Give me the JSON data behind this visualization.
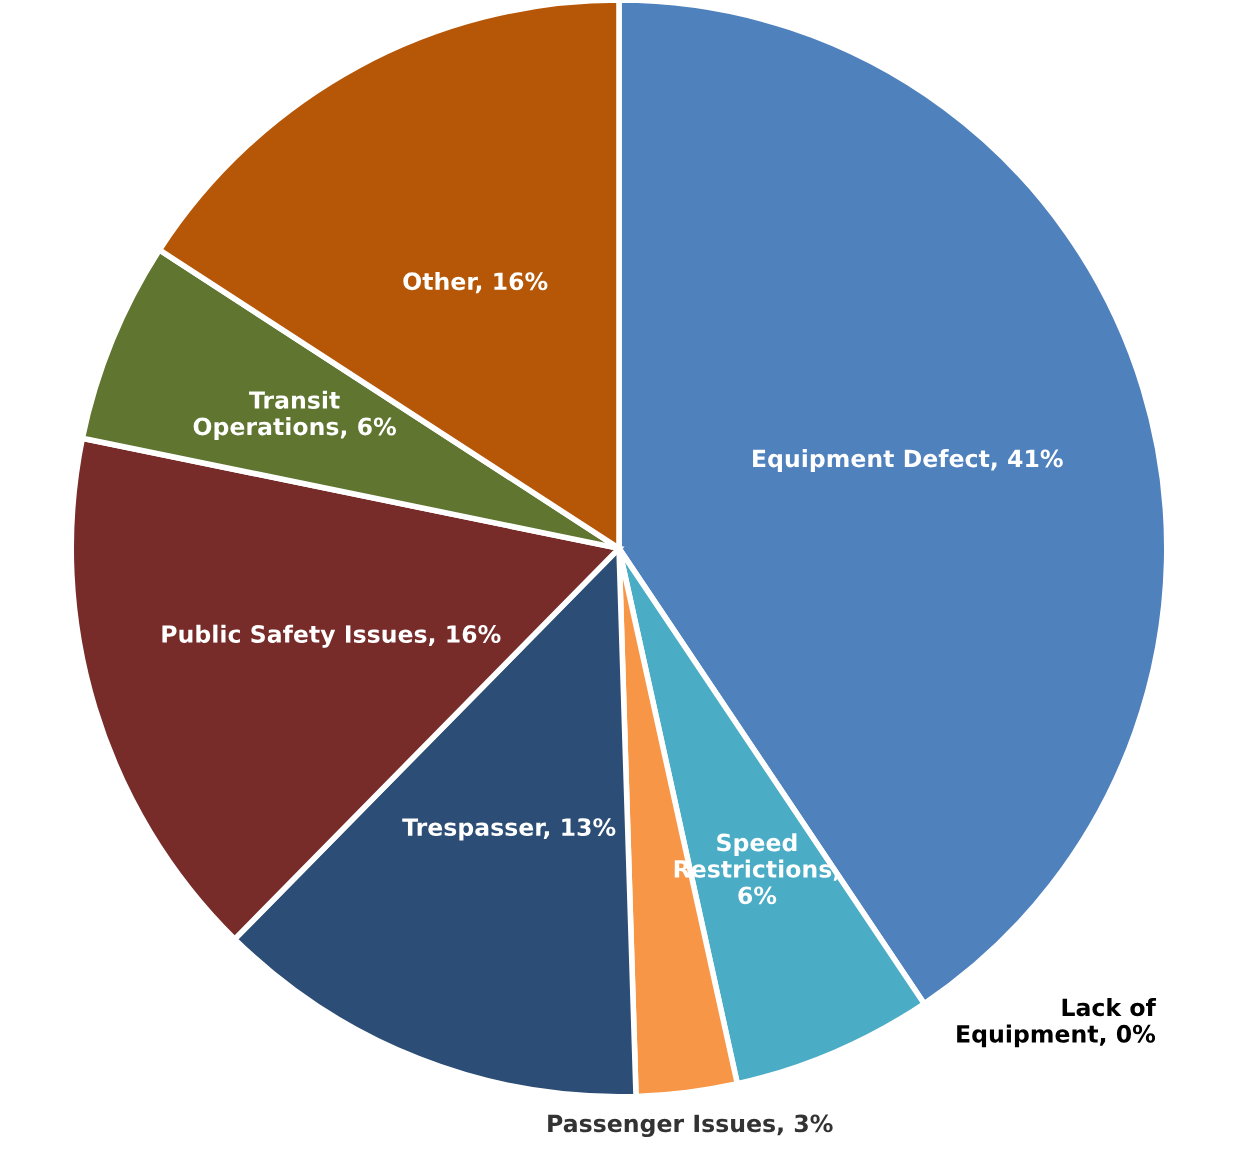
{
  "chart_data": {
    "type": "pie",
    "categories": [
      "Equipment Defect, 41%",
      "Speed\nRestrictions,\n6%",
      "Lack of\nEquipment, 0%",
      "Passenger Issues, 3%",
      "Trespasser, 13%",
      "Public Safety Issues, 16%",
      "Transit\nOperations, 6%",
      "Other, 16%"
    ],
    "values": [
      41,
      6,
      0,
      3,
      13,
      16,
      6,
      16
    ],
    "colors": [
      "#4f81bd",
      "#4bacc6",
      "#9bbb59",
      "#f79646",
      "#2c4d75",
      "#772c2a",
      "#5f7530",
      "#b65708"
    ],
    "legend": false
  }
}
